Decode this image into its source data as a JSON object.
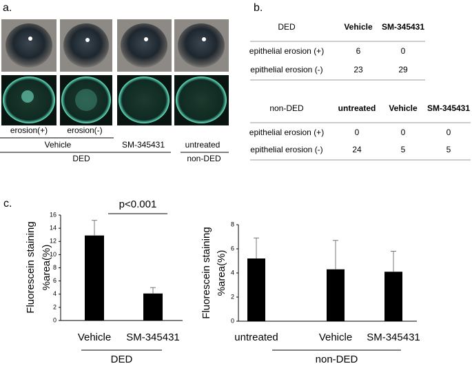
{
  "panels": {
    "a": "a.",
    "b": "b.",
    "c": "c."
  },
  "panel_a": {
    "row_labels": [
      "erosion(+)",
      "erosion(-)"
    ],
    "treatment_labels": [
      "Vehicle",
      "SM-345431",
      "untreated"
    ],
    "group_labels": [
      "DED",
      "non-DED"
    ]
  },
  "tables": [
    {
      "header": [
        "DED",
        "Vehicle",
        "SM-345431"
      ],
      "rows": [
        [
          "epithelial erosion (+)",
          6,
          0
        ],
        [
          "epithelial erosion (-)",
          23,
          29
        ]
      ]
    },
    {
      "header": [
        "non-DED",
        "untreated",
        "Vehicle",
        "SM-345431"
      ],
      "rows": [
        [
          "epithelial erosion (+)",
          0,
          0,
          0
        ],
        [
          "epithelial erosion (-)",
          24,
          5,
          5
        ]
      ]
    }
  ],
  "chart_data": [
    {
      "type": "bar",
      "ylabel": [
        "Fluorescein staining",
        "%area(%)"
      ],
      "categories": [
        "Vehicle",
        "SM-345431"
      ],
      "values": [
        12.9,
        4.1
      ],
      "errors": [
        2.3,
        0.9
      ],
      "color": "#000000",
      "ylim": [
        0,
        16
      ],
      "yticks": [
        0,
        2,
        4,
        6,
        8,
        10,
        12,
        14,
        16
      ],
      "group_label": "DED",
      "annotation": "p<0.001"
    },
    {
      "type": "bar",
      "ylabel": [
        "Fluorescein staining",
        "%area(%)"
      ],
      "categories": [
        "untreated",
        "Vehicle",
        "SM-345431"
      ],
      "values": [
        5.2,
        4.3,
        4.1
      ],
      "errors": [
        1.7,
        2.4,
        1.7
      ],
      "color": "#000000",
      "ylim": [
        0,
        8
      ],
      "yticks": [
        0,
        2,
        4,
        6,
        8
      ],
      "group_label": "non-DED"
    }
  ]
}
